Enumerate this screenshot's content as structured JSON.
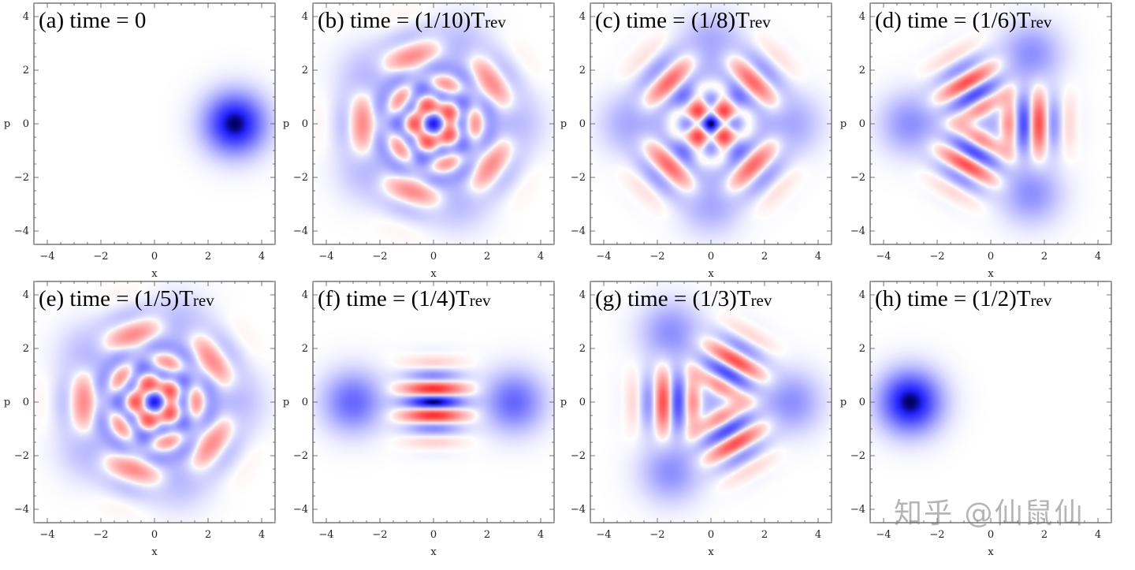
{
  "chart_data": {
    "type": "heatmap",
    "description_axes": {
      "xlabel": "x",
      "ylabel": "p",
      "xlim": [
        -4.5,
        4.5
      ],
      "ylim": [
        -4.5,
        4.5
      ],
      "ticks": [
        -4,
        -2,
        0,
        2,
        4
      ],
      "tick_labels": [
        "−4",
        "−2",
        "0",
        "2",
        "4"
      ],
      "grid": false,
      "colormap": {
        "positive": "#0000ff",
        "negative": "#ff0000",
        "zero": "#ffffff"
      }
    },
    "panels": [
      {
        "id": "a",
        "title_main": "(a) time = 0",
        "title_sub": "",
        "fraction_of_revival": 0,
        "n_components": 1,
        "peak_positions": [
          [
            3,
            0
          ]
        ]
      },
      {
        "id": "b",
        "title_main": "(b) time = (1/10)T",
        "title_sub": "rev",
        "fraction_of_revival": 0.1,
        "n_components": 5,
        "peak_positions": [
          [
            3,
            0
          ],
          [
            0.93,
            2.85
          ],
          [
            -2.43,
            1.76
          ],
          [
            -2.43,
            -1.76
          ],
          [
            0.93,
            -2.85
          ]
        ]
      },
      {
        "id": "c",
        "title_main": "(c) time = (1/8)T",
        "title_sub": "rev",
        "fraction_of_revival": 0.125,
        "n_components": 4,
        "peak_positions": [
          [
            3,
            0
          ],
          [
            0,
            3
          ],
          [
            -3,
            0
          ],
          [
            0,
            -3
          ]
        ]
      },
      {
        "id": "d",
        "title_main": "(d) time = (1/6)T",
        "title_sub": "rev",
        "fraction_of_revival": 0.1667,
        "n_components": 3,
        "peak_positions": [
          [
            -3,
            0
          ],
          [
            1.5,
            2.6
          ],
          [
            1.5,
            -2.6
          ]
        ]
      },
      {
        "id": "e",
        "title_main": "(e) time = (1/5)T",
        "title_sub": "rev",
        "fraction_of_revival": 0.2,
        "n_components": 5,
        "peak_positions": [
          [
            3,
            0
          ],
          [
            0.93,
            2.85
          ],
          [
            -2.43,
            1.76
          ],
          [
            -2.43,
            -1.76
          ],
          [
            0.93,
            -2.85
          ]
        ]
      },
      {
        "id": "f",
        "title_main": "(f) time = (1/4)T",
        "title_sub": "rev",
        "fraction_of_revival": 0.25,
        "n_components": 2,
        "peak_positions": [
          [
            3,
            0
          ],
          [
            -3,
            0
          ]
        ]
      },
      {
        "id": "g",
        "title_main": "(g) time = (1/3)T",
        "title_sub": "rev",
        "fraction_of_revival": 0.3333,
        "n_components": 3,
        "peak_positions": [
          [
            3,
            0
          ],
          [
            -1.5,
            2.6
          ],
          [
            -1.5,
            -2.6
          ]
        ]
      },
      {
        "id": "h",
        "title_main": "(h) time = (1/2)T",
        "title_sub": "rev",
        "fraction_of_revival": 0.5,
        "n_components": 1,
        "peak_positions": [
          [
            -3,
            0
          ]
        ]
      }
    ]
  },
  "watermark": "知乎 @仙鼠仙"
}
